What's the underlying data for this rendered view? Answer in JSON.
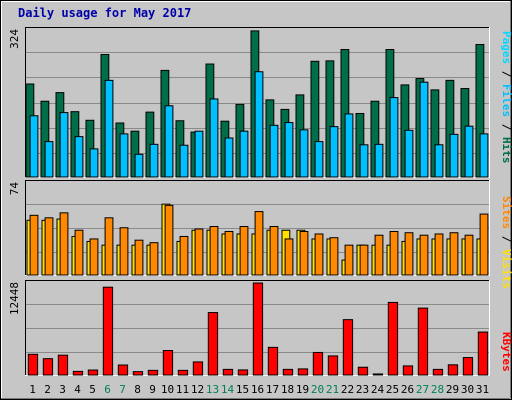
{
  "title": "Daily usage for May 2017",
  "colors": {
    "background": "#c6c6c6",
    "border": "#000000",
    "title": "#0000aa",
    "hits": "#006f49",
    "files": "#00c0ff",
    "pages": "#00d8ff",
    "visits": "#ff8800",
    "sites": "#ffe000",
    "kbytes": "#ff0000",
    "weekend_label": "#00805a",
    "weekday_label": "#000000"
  },
  "chart_data": [
    {
      "type": "bar",
      "panel": "hits-files-pages",
      "categories": [
        "1",
        "2",
        "3",
        "4",
        "5",
        "6",
        "7",
        "8",
        "9",
        "10",
        "11",
        "12",
        "13",
        "14",
        "15",
        "16",
        "17",
        "18",
        "19",
        "20",
        "21",
        "22",
        "23",
        "24",
        "25",
        "26",
        "27",
        "28",
        "29",
        "30",
        "31"
      ],
      "weekend_days": [
        "6",
        "7",
        "13",
        "14",
        "20",
        "21",
        "27",
        "28"
      ],
      "ymax_label": "324",
      "ylim": [
        0,
        324
      ],
      "legend": [
        "Pages",
        "Files",
        "Hits"
      ],
      "series": [
        {
          "name": "Hits",
          "values": [
            205,
            167,
            186,
            144,
            125,
            270,
            119,
            101,
            143,
            235,
            124,
            99,
            249,
            123,
            160,
            322,
            170,
            149,
            181,
            255,
            256,
            281,
            140,
            167,
            281,
            203,
            217,
            192,
            213,
            195,
            292
          ]
        },
        {
          "name": "Files",
          "values": [
            135,
            78,
            142,
            89,
            62,
            213,
            95,
            50,
            72,
            157,
            70,
            101,
            172,
            86,
            101,
            232,
            114,
            120,
            104,
            78,
            111,
            139,
            71,
            72,
            175,
            103,
            209,
            71,
            94,
            112,
            95
          ]
        },
        {
          "name": "Pages",
          "values": [
            0,
            0,
            0,
            0,
            0,
            0,
            0,
            0,
            0,
            0,
            0,
            0,
            0,
            0,
            0,
            0,
            0,
            0,
            0,
            0,
            0,
            0,
            0,
            0,
            0,
            0,
            0,
            0,
            0,
            0,
            0
          ]
        }
      ]
    },
    {
      "type": "bar",
      "panel": "visits-sites",
      "categories": [
        "1",
        "2",
        "3",
        "4",
        "5",
        "6",
        "7",
        "8",
        "9",
        "10",
        "11",
        "12",
        "13",
        "14",
        "15",
        "16",
        "17",
        "18",
        "19",
        "20",
        "21",
        "22",
        "23",
        "24",
        "25",
        "26",
        "27",
        "28",
        "29",
        "30",
        "31"
      ],
      "ymax_label": "74",
      "ylim": [
        0,
        74
      ],
      "legend": [
        "Sites",
        "Visits"
      ],
      "series": [
        {
          "name": "Visits",
          "values": [
            48,
            46,
            50,
            36,
            29,
            46,
            38,
            28,
            26,
            56,
            31,
            37,
            39,
            35,
            39,
            51,
            39,
            29,
            35,
            33,
            30,
            24,
            24,
            32,
            35,
            34,
            32,
            33,
            34,
            32,
            49
          ]
        },
        {
          "name": "Sites",
          "values": [
            44,
            44,
            45,
            31,
            27,
            24,
            24,
            24,
            24,
            57,
            27,
            36,
            36,
            33,
            33,
            33,
            36,
            36,
            36,
            29,
            29,
            12,
            24,
            24,
            24,
            27,
            29,
            29,
            29,
            29,
            29
          ]
        }
      ]
    },
    {
      "type": "bar",
      "panel": "kbytes",
      "categories": [
        "1",
        "2",
        "3",
        "4",
        "5",
        "6",
        "7",
        "8",
        "9",
        "10",
        "11",
        "12",
        "13",
        "14",
        "15",
        "16",
        "17",
        "18",
        "19",
        "20",
        "21",
        "22",
        "23",
        "24",
        "25",
        "26",
        "27",
        "28",
        "29",
        "30",
        "31"
      ],
      "ymax_label": "12448",
      "ylim": [
        0,
        12448
      ],
      "legend": [
        "KBytes"
      ],
      "series": [
        {
          "name": "KBytes",
          "values": [
            2800,
            2210,
            2680,
            487,
            672,
            11880,
            1350,
            456,
            628,
            3310,
            628,
            1770,
            8450,
            761,
            687,
            12448,
            3740,
            761,
            825,
            3050,
            2580,
            7490,
            1050,
            142,
            9820,
            1230,
            9050,
            761,
            1380,
            2360,
            5810
          ]
        }
      ]
    }
  ],
  "footer_labels": [
    "1",
    "2",
    "3",
    "4",
    "5",
    "6",
    "7",
    "8",
    "9",
    "10",
    "11",
    "12",
    "13",
    "14",
    "15",
    "16",
    "17",
    "18",
    "19",
    "20",
    "21",
    "22",
    "23",
    "24",
    "25",
    "26",
    "27",
    "28",
    "29",
    "30",
    "31"
  ]
}
